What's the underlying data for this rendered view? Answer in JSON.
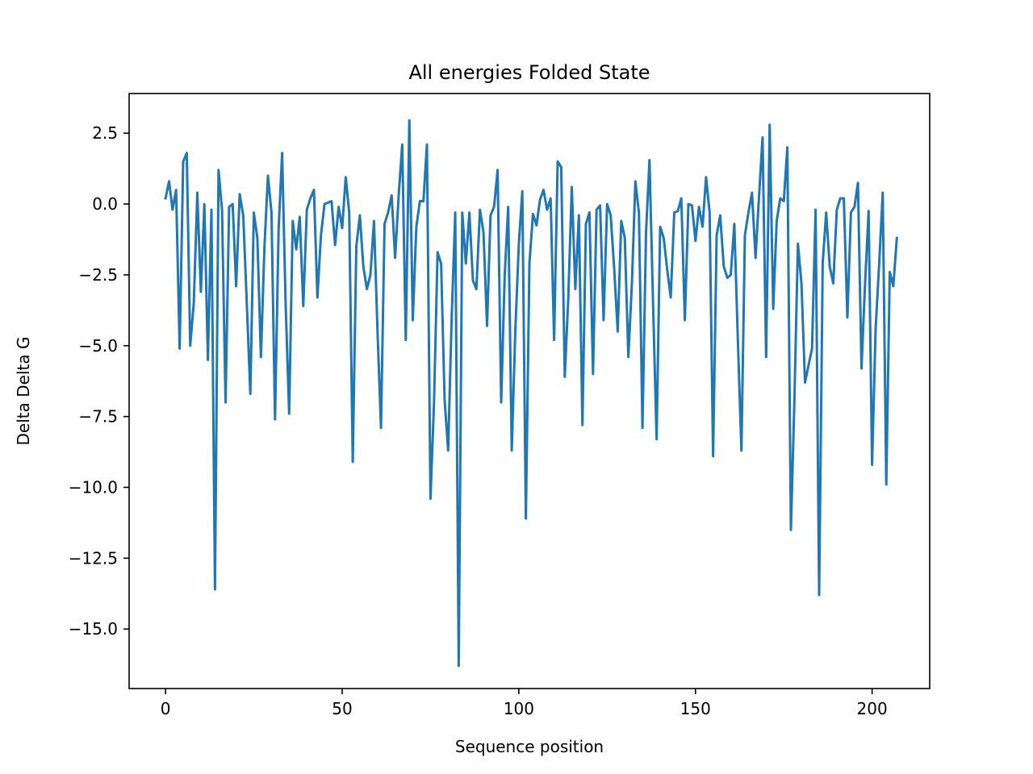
{
  "chart_data": {
    "type": "line",
    "title": "All energies Folded State",
    "xlabel": "Sequence position",
    "ylabel": "Delta Delta G",
    "xlim": [
      -10.3,
      216.3
    ],
    "ylim": [
      -17.1,
      3.9
    ],
    "grid": false,
    "xticks": [
      0,
      50,
      100,
      150,
      200
    ],
    "xtick_labels": [
      "0",
      "50",
      "100",
      "150",
      "200"
    ],
    "yticks": [
      2.5,
      0,
      -2.5,
      -5,
      -7.5,
      -10,
      -12.5,
      -15
    ],
    "ytick_labels": [
      "2.5",
      "0.0",
      "−2.5",
      "−5.0",
      "−7.5",
      "−10.0",
      "−12.5",
      "−15.0"
    ],
    "series": [
      {
        "color": "#1f77b4",
        "x_start": 0,
        "x_step": 1,
        "values": [
          0.2,
          0.8,
          -0.2,
          0.5,
          -5.1,
          1.5,
          1.8,
          -5.0,
          -3.5,
          0.4,
          -3.1,
          0.0,
          -5.5,
          -0.2,
          -13.6,
          1.2,
          -0.2,
          -7.0,
          -0.1,
          0.0,
          -2.9,
          0.35,
          -0.4,
          -3.5,
          -6.7,
          -0.3,
          -1.2,
          -5.4,
          -1.5,
          1.0,
          -0.3,
          -7.6,
          -0.9,
          1.8,
          -3.5,
          -7.4,
          -0.6,
          -1.6,
          -0.45,
          -3.6,
          -0.2,
          0.2,
          0.5,
          -3.3,
          -1.1,
          0.0,
          0.05,
          0.1,
          -1.45,
          -0.1,
          -0.85,
          0.95,
          -0.3,
          -9.1,
          -1.5,
          -0.4,
          -2.2,
          -3.0,
          -2.5,
          -0.6,
          -4.5,
          -7.9,
          -0.7,
          -0.3,
          0.3,
          -1.9,
          0.3,
          2.1,
          -4.8,
          2.95,
          -4.1,
          -0.8,
          0.1,
          0.1,
          2.1,
          -10.4,
          -7.0,
          -1.7,
          -2.1,
          -6.9,
          -8.7,
          -4.0,
          -0.3,
          -16.3,
          -0.3,
          -2.1,
          -0.3,
          -2.7,
          -3.0,
          -0.2,
          -1.0,
          -4.3,
          -0.4,
          -0.1,
          1.2,
          -7.0,
          -2.5,
          -0.1,
          -8.7,
          -4.5,
          -1.4,
          0.45,
          -11.1,
          -2.1,
          -0.35,
          -0.75,
          0.15,
          0.5,
          -0.2,
          0.2,
          -4.8,
          1.5,
          1.3,
          -6.1,
          -3.3,
          0.6,
          -3.0,
          -0.4,
          -7.8,
          -0.7,
          -0.3,
          -6.0,
          -0.2,
          -0.05,
          -4.1,
          0.0,
          -0.4,
          -2.3,
          -4.5,
          -0.6,
          -1.2,
          -5.4,
          -2.8,
          0.8,
          -0.3,
          -7.9,
          -1.0,
          1.55,
          -3.5,
          -8.3,
          -0.8,
          -1.2,
          -2.3,
          -3.3,
          -0.3,
          -0.25,
          0.2,
          -4.1,
          0.0,
          -0.05,
          -1.3,
          -0.1,
          -0.8,
          0.95,
          -0.3,
          -8.9,
          -1.1,
          -0.4,
          -2.2,
          -2.6,
          -2.5,
          -0.7,
          -4.8,
          -8.7,
          -1.1,
          -0.3,
          0.4,
          -1.9,
          0.3,
          2.35,
          -5.4,
          2.8,
          -3.7,
          -0.6,
          0.2,
          0.1,
          2.0,
          -11.5,
          -7.0,
          -1.4,
          -2.8,
          -6.3,
          -5.7,
          -5.1,
          -0.2,
          -13.8,
          -2.1,
          -0.3,
          -2.2,
          -2.8,
          -0.2,
          0.2,
          0.2,
          -4.0,
          -0.3,
          -0.1,
          0.75,
          -5.8,
          -2.8,
          -0.25,
          -9.2,
          -4.4,
          -2.1,
          0.4,
          -9.9,
          -2.4,
          -2.9,
          -1.2
        ]
      }
    ]
  }
}
